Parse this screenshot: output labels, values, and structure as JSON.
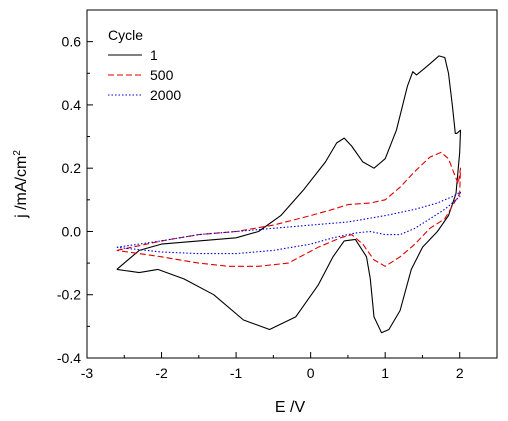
{
  "chart_data": {
    "type": "line",
    "xlabel": "E /V",
    "ylabel_main": "j /mA/cm",
    "ylabel_sup": "2",
    "xlim": [
      -3,
      2.5
    ],
    "ylim": [
      -0.4,
      0.7
    ],
    "x_ticks": [
      -3,
      -2,
      -1,
      0,
      1,
      2
    ],
    "y_ticks": [
      -0.4,
      -0.2,
      0.0,
      0.2,
      0.4,
      0.6
    ],
    "x_tick_labels": [
      "-3",
      "-2",
      "-1",
      "0",
      "1",
      "2"
    ],
    "y_tick_labels": [
      "-0.4",
      "-0.2",
      "0.0",
      "0.2",
      "0.4",
      "0.6"
    ],
    "grid": false,
    "legend": {
      "title": "Cycle",
      "placement": "top-left"
    },
    "series": [
      {
        "name": "1",
        "color": "#000000",
        "dash": "solid",
        "points": [
          [
            -2.6,
            -0.12
          ],
          [
            -2.3,
            -0.06
          ],
          [
            -2.0,
            -0.04
          ],
          [
            -1.5,
            -0.03
          ],
          [
            -1.0,
            -0.02
          ],
          [
            -0.7,
            0.0
          ],
          [
            -0.4,
            0.05
          ],
          [
            -0.1,
            0.13
          ],
          [
            0.2,
            0.22
          ],
          [
            0.35,
            0.28
          ],
          [
            0.45,
            0.295
          ],
          [
            0.55,
            0.27
          ],
          [
            0.7,
            0.22
          ],
          [
            0.85,
            0.2
          ],
          [
            1.0,
            0.23
          ],
          [
            1.15,
            0.32
          ],
          [
            1.3,
            0.46
          ],
          [
            1.37,
            0.505
          ],
          [
            1.42,
            0.495
          ],
          [
            1.5,
            0.51
          ],
          [
            1.6,
            0.53
          ],
          [
            1.72,
            0.555
          ],
          [
            1.8,
            0.55
          ],
          [
            1.85,
            0.5
          ],
          [
            1.9,
            0.4
          ],
          [
            1.94,
            0.31
          ],
          [
            1.96,
            0.31
          ],
          [
            2.01,
            0.32
          ],
          [
            2.0,
            0.25
          ],
          [
            1.95,
            0.12
          ],
          [
            1.85,
            0.05
          ],
          [
            1.7,
            0.0
          ],
          [
            1.5,
            -0.05
          ],
          [
            1.35,
            -0.12
          ],
          [
            1.2,
            -0.25
          ],
          [
            1.05,
            -0.31
          ],
          [
            0.95,
            -0.32
          ],
          [
            0.85,
            -0.27
          ],
          [
            0.8,
            -0.15
          ],
          [
            0.75,
            -0.08
          ],
          [
            0.6,
            -0.025
          ],
          [
            0.45,
            -0.03
          ],
          [
            0.3,
            -0.08
          ],
          [
            0.1,
            -0.17
          ],
          [
            -0.2,
            -0.27
          ],
          [
            -0.55,
            -0.31
          ],
          [
            -0.9,
            -0.28
          ],
          [
            -1.3,
            -0.2
          ],
          [
            -1.7,
            -0.15
          ],
          [
            -2.05,
            -0.12
          ],
          [
            -2.3,
            -0.13
          ],
          [
            -2.6,
            -0.12
          ]
        ]
      },
      {
        "name": "500",
        "color": "#e00000",
        "dash": "dashed",
        "points": [
          [
            -2.6,
            -0.06
          ],
          [
            -2.0,
            -0.03
          ],
          [
            -1.5,
            -0.01
          ],
          [
            -1.0,
            0.0
          ],
          [
            -0.5,
            0.02
          ],
          [
            0.0,
            0.05
          ],
          [
            0.3,
            0.07
          ],
          [
            0.5,
            0.085
          ],
          [
            0.8,
            0.09
          ],
          [
            1.0,
            0.1
          ],
          [
            1.2,
            0.14
          ],
          [
            1.4,
            0.19
          ],
          [
            1.6,
            0.235
          ],
          [
            1.75,
            0.25
          ],
          [
            1.85,
            0.23
          ],
          [
            1.93,
            0.18
          ],
          [
            1.98,
            0.15
          ],
          [
            2.01,
            0.2
          ],
          [
            2.0,
            0.12
          ],
          [
            1.8,
            0.04
          ],
          [
            1.6,
            0.01
          ],
          [
            1.4,
            -0.04
          ],
          [
            1.2,
            -0.08
          ],
          [
            1.0,
            -0.11
          ],
          [
            0.85,
            -0.09
          ],
          [
            0.7,
            -0.04
          ],
          [
            0.55,
            -0.01
          ],
          [
            0.4,
            -0.02
          ],
          [
            0.1,
            -0.05
          ],
          [
            -0.3,
            -0.1
          ],
          [
            -0.7,
            -0.11
          ],
          [
            -1.1,
            -0.11
          ],
          [
            -1.5,
            -0.1
          ],
          [
            -2.0,
            -0.08
          ],
          [
            -2.6,
            -0.06
          ]
        ]
      },
      {
        "name": "2000",
        "color": "#0000e0",
        "dash": "dotted",
        "points": [
          [
            -2.6,
            -0.05
          ],
          [
            -2.0,
            -0.03
          ],
          [
            -1.5,
            -0.01
          ],
          [
            -1.0,
            0.0
          ],
          [
            -0.5,
            0.01
          ],
          [
            0.0,
            0.02
          ],
          [
            0.5,
            0.03
          ],
          [
            1.0,
            0.05
          ],
          [
            1.4,
            0.07
          ],
          [
            1.7,
            0.09
          ],
          [
            1.9,
            0.11
          ],
          [
            2.01,
            0.125
          ],
          [
            2.0,
            0.11
          ],
          [
            1.8,
            0.07
          ],
          [
            1.6,
            0.04
          ],
          [
            1.4,
            0.01
          ],
          [
            1.2,
            -0.01
          ],
          [
            1.0,
            -0.01
          ],
          [
            0.8,
            0.0
          ],
          [
            0.6,
            -0.005
          ],
          [
            0.3,
            -0.02
          ],
          [
            0.0,
            -0.04
          ],
          [
            -0.5,
            -0.06
          ],
          [
            -1.0,
            -0.07
          ],
          [
            -1.5,
            -0.07
          ],
          [
            -2.0,
            -0.065
          ],
          [
            -2.6,
            -0.05
          ]
        ]
      }
    ]
  }
}
